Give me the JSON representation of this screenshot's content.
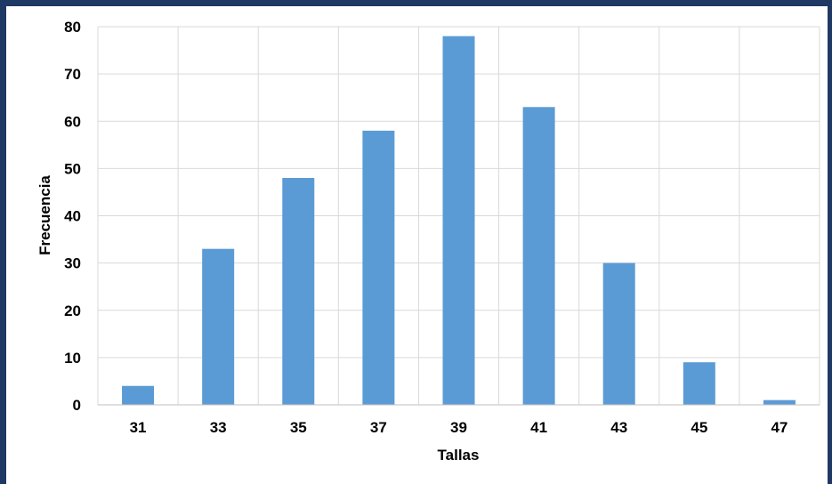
{
  "chart_data": {
    "type": "bar",
    "categories": [
      "31",
      "33",
      "35",
      "37",
      "39",
      "41",
      "43",
      "45",
      "47"
    ],
    "values": [
      4,
      33,
      48,
      58,
      78,
      63,
      30,
      9,
      1
    ],
    "xlabel": "Tallas",
    "ylabel": "Frecuencia",
    "ylim": [
      0,
      80
    ],
    "yticks": [
      0,
      10,
      20,
      30,
      40,
      50,
      60,
      70,
      80
    ],
    "grid": true,
    "legend": "none",
    "colors": {
      "bar": "#5b9bd5",
      "grid": "#d9d9d9",
      "frame": "#1f3864"
    }
  }
}
